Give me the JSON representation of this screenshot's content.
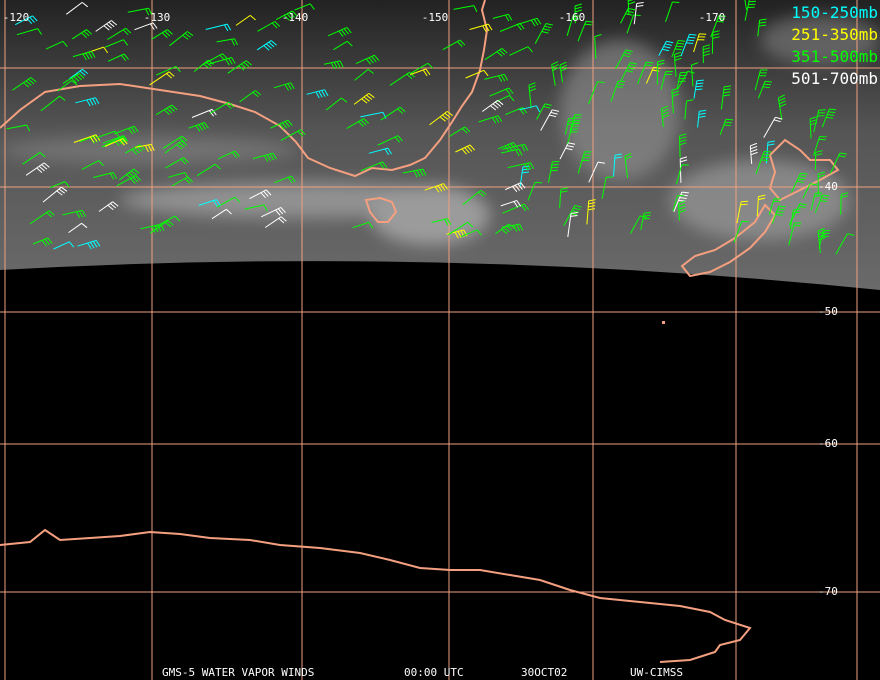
{
  "map": {
    "longitude_labels": [
      "-120",
      "-130",
      "-140",
      "-150",
      "-160",
      "-170"
    ],
    "latitude_labels": [
      "-40",
      "-50",
      "-60",
      "-70"
    ],
    "legend": [
      {
        "label": "150-250mb",
        "color": "#00ffff"
      },
      {
        "label": "251-350mb",
        "color": "#ffff00"
      },
      {
        "label": "351-500mb",
        "color": "#00ff00"
      },
      {
        "label": "501-700mb",
        "color": "#ffffff"
      }
    ],
    "footer": [
      "GMS-5 WATER VAPOR WINDS",
      "00:00 UTC",
      "30OCT02",
      "UW-CIMSS"
    ]
  }
}
